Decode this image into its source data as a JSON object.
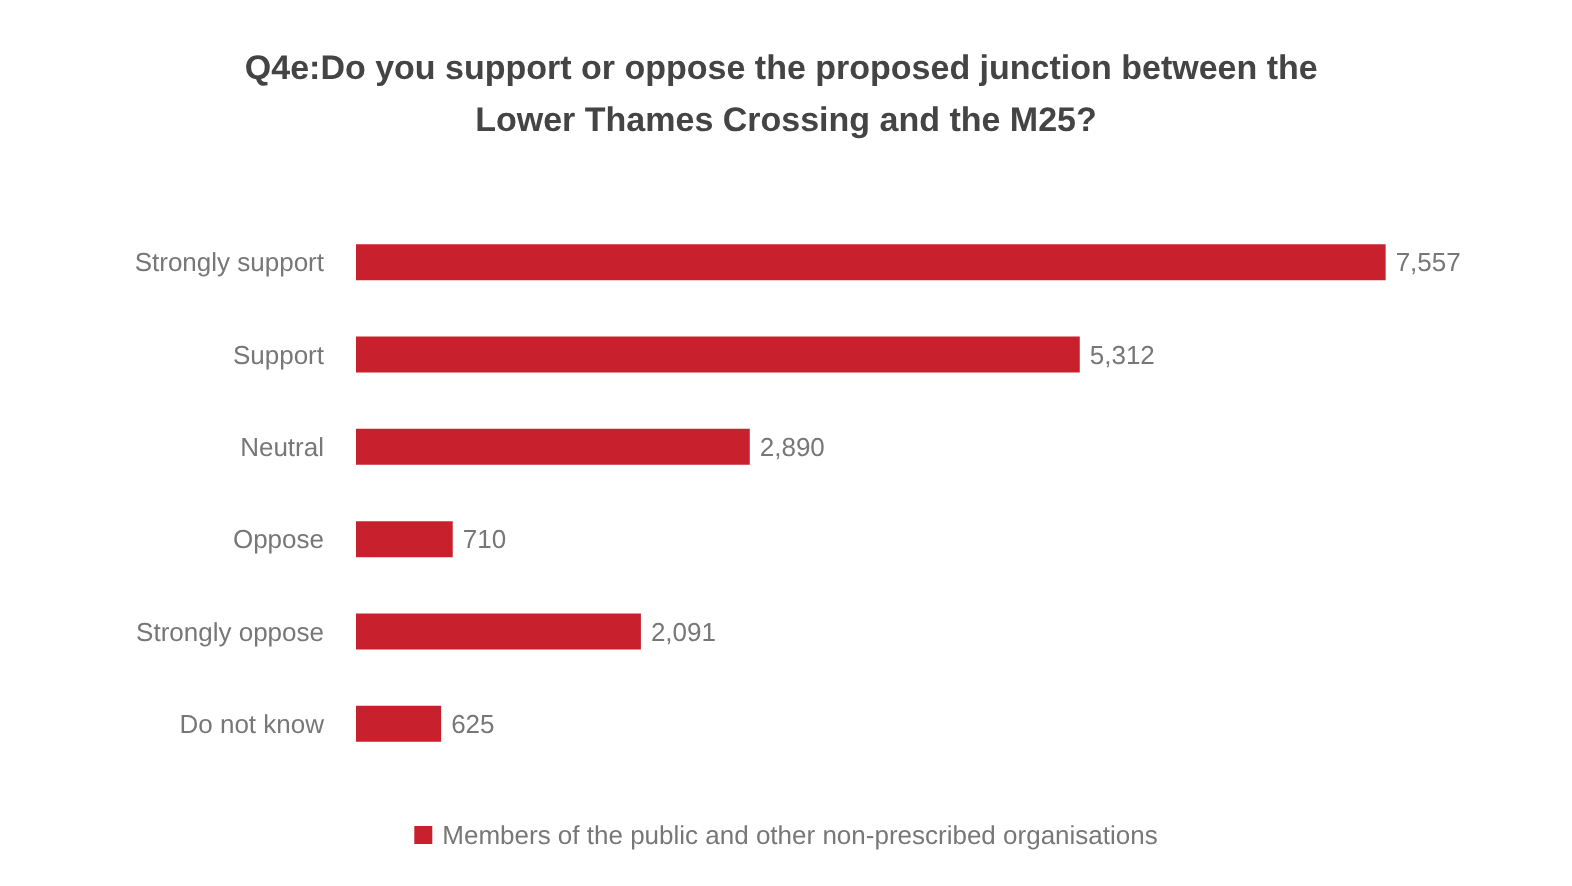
{
  "chart_data": {
    "type": "bar",
    "orientation": "horizontal",
    "title": "Q4e:Do you support or oppose the proposed junction between the Lower Thames Crossing and the M25?",
    "categories": [
      "Strongly support",
      "Support",
      "Neutral",
      "Oppose",
      "Strongly oppose",
      "Do not know"
    ],
    "series": [
      {
        "name": "Members of the public and other non-prescribed organisations",
        "color": "#c8202c",
        "values": [
          7557,
          5312,
          2890,
          710,
          2091,
          625
        ],
        "value_labels": [
          "7,557",
          "5,312",
          "2,890",
          "710",
          "2,091",
          "625"
        ]
      }
    ],
    "legend": "bottom"
  }
}
